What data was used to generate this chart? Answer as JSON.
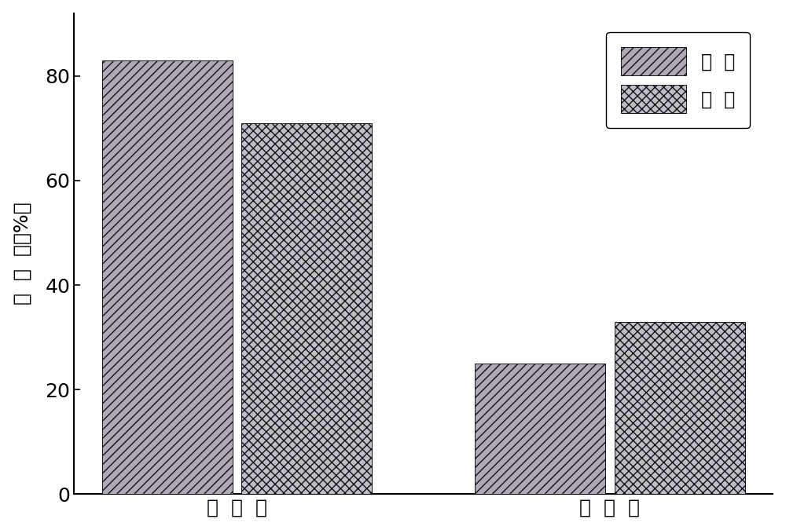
{
  "groups": [
    "有  光  照",
    "无  光  照"
  ],
  "series": [
    {
      "label": "氨  氮",
      "values": [
        83,
        25
      ],
      "hatch": "///",
      "facecolor": "#b0a8b8",
      "edgecolor": "#111111"
    },
    {
      "label": "总  氮",
      "values": [
        71,
        33
      ],
      "hatch": "xxx",
      "facecolor": "#c0bcc8",
      "edgecolor": "#111111"
    }
  ],
  "ylabel_chars": [
    "去",
    " ",
    "除",
    " ",
    "率",
    "(%)",
    ""
  ],
  "ylabel_text": "去  除  率（%）",
  "ylim": [
    0,
    92
  ],
  "yticks": [
    0,
    20,
    40,
    60,
    80
  ],
  "bar_width": 0.28,
  "group_positions": [
    0.35,
    1.15
  ],
  "xlim": [
    0.0,
    1.5
  ],
  "background_color": "#ffffff",
  "tick_fontsize": 18,
  "label_fontsize": 18,
  "legend_fontsize": 17
}
